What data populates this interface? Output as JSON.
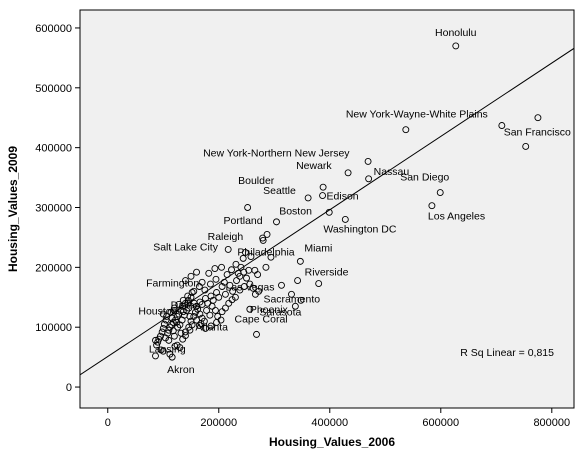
{
  "chart_data": {
    "type": "scatter",
    "xlabel": "Housing_Values_2006",
    "ylabel": "Housing_Values_2009",
    "xlim": [
      -50000,
      840000
    ],
    "ylim": [
      -35000,
      630000
    ],
    "x_ticks": [
      0,
      200000,
      400000,
      600000,
      800000
    ],
    "y_ticks": [
      0,
      100000,
      200000,
      300000,
      400000,
      500000,
      600000
    ],
    "x_tick_labels": [
      "0",
      "200000",
      "400000",
      "600000",
      "800000"
    ],
    "y_tick_labels": [
      "0",
      "100000",
      "200000",
      "300000",
      "400000",
      "500000",
      "600000"
    ],
    "grid": false,
    "background_color": "#f0f0f0",
    "marker_color": "#000000",
    "annotation": "R Sq Linear = 0,815",
    "fit_line": {
      "slope": 0.613,
      "intercept": 51000
    },
    "labeled_points": [
      {
        "label": "Honolulu",
        "x": 627000,
        "y": 570000
      },
      {
        "label": "New York-Wayne-White Plains",
        "x": 537000,
        "y": 430000
      },
      {
        "label": "San Francisco",
        "x": 753000,
        "y": 402000
      },
      {
        "label": "New York-Northern New Jersey",
        "x": 469000,
        "y": 377000
      },
      {
        "label": "Newark",
        "x": 433000,
        "y": 358000
      },
      {
        "label": "Nassau",
        "x": 470000,
        "y": 348000
      },
      {
        "label": "Boulder",
        "x": 388000,
        "y": 334000
      },
      {
        "label": "Seattle",
        "x": 361000,
        "y": 316000
      },
      {
        "label": "Edison",
        "x": 387000,
        "y": 320000
      },
      {
        "label": "San Diego",
        "x": 599000,
        "y": 325000
      },
      {
        "label": "Boston",
        "x": 399000,
        "y": 292000
      },
      {
        "label": "Los Angeles",
        "x": 584000,
        "y": 303000
      },
      {
        "label": "Portland",
        "x": 304000,
        "y": 276000
      },
      {
        "label": "Washington DC",
        "x": 428000,
        "y": 280000
      },
      {
        "label": "Raleigh",
        "x": 279000,
        "y": 249000
      },
      {
        "label": "Salt Lake City",
        "x": 217000,
        "y": 230000
      },
      {
        "label": "Philadelphia",
        "x": 248000,
        "y": 225000
      },
      {
        "label": "Miami",
        "x": 347000,
        "y": 210000
      },
      {
        "label": "Riverside",
        "x": 380000,
        "y": 173000
      },
      {
        "label": "Farmington",
        "x": 170000,
        "y": 175000
      },
      {
        "label": "Las Vegas",
        "x": 313000,
        "y": 170000
      },
      {
        "label": "Sacramento",
        "x": 331000,
        "y": 155000
      },
      {
        "label": "Sarasota",
        "x": 338000,
        "y": 135000
      },
      {
        "label": "Houston",
        "x": 120000,
        "y": 128000
      },
      {
        "label": "Dallas",
        "x": 144000,
        "y": 140000
      },
      {
        "label": "Phoenix",
        "x": 256000,
        "y": 130000
      },
      {
        "label": "Atlanta",
        "x": 165000,
        "y": 103000
      },
      {
        "label": "Cape Coral",
        "x": 268000,
        "y": 88000
      },
      {
        "label": "Lansing",
        "x": 121000,
        "y": 68000
      },
      {
        "label": "Akron",
        "x": 116000,
        "y": 50000
      }
    ],
    "points": [
      [
        775000,
        450000
      ],
      [
        710000,
        437000
      ],
      [
        252000,
        300000
      ],
      [
        342000,
        178000
      ],
      [
        348000,
        145000
      ],
      [
        266000,
        155000
      ],
      [
        287000,
        255000
      ],
      [
        280000,
        245000
      ],
      [
        294000,
        217000
      ],
      [
        258000,
        218000
      ],
      [
        244000,
        215000
      ],
      [
        231000,
        205000
      ],
      [
        240000,
        200000
      ],
      [
        223000,
        196000
      ],
      [
        205000,
        200000
      ],
      [
        193000,
        198000
      ],
      [
        182000,
        190000
      ],
      [
        160000,
        192000
      ],
      [
        150000,
        185000
      ],
      [
        140000,
        178000
      ],
      [
        165000,
        168000
      ],
      [
        155000,
        160000
      ],
      [
        175000,
        162000
      ],
      [
        185000,
        172000
      ],
      [
        195000,
        180000
      ],
      [
        210000,
        175000
      ],
      [
        220000,
        170000
      ],
      [
        232000,
        178000
      ],
      [
        250000,
        182000
      ],
      [
        270000,
        188000
      ],
      [
        285000,
        200000
      ],
      [
        265000,
        195000
      ],
      [
        245000,
        192000
      ],
      [
        235000,
        190000
      ],
      [
        215000,
        188000
      ],
      [
        225000,
        160000
      ],
      [
        212000,
        155000
      ],
      [
        200000,
        150000
      ],
      [
        190000,
        145000
      ],
      [
        180000,
        140000
      ],
      [
        170000,
        138000
      ],
      [
        160000,
        135000
      ],
      [
        150000,
        150000
      ],
      [
        145000,
        145000
      ],
      [
        140000,
        140000
      ],
      [
        135000,
        135000
      ],
      [
        132000,
        128000
      ],
      [
        128000,
        122000
      ],
      [
        125000,
        118000
      ],
      [
        122000,
        112000
      ],
      [
        118000,
        108000
      ],
      [
        115000,
        104000
      ],
      [
        112000,
        100000
      ],
      [
        110000,
        95000
      ],
      [
        108000,
        90000
      ],
      [
        105000,
        112000
      ],
      [
        102000,
        105000
      ],
      [
        100000,
        98000
      ],
      [
        98000,
        92000
      ],
      [
        95000,
        85000
      ],
      [
        92000,
        80000
      ],
      [
        90000,
        75000
      ],
      [
        88000,
        70000
      ],
      [
        86000,
        78000
      ],
      [
        104000,
        82000
      ],
      [
        96000,
        62000
      ],
      [
        86000,
        52000
      ],
      [
        100000,
        60000
      ],
      [
        112000,
        55000
      ],
      [
        125000,
        70000
      ],
      [
        130000,
        66000
      ],
      [
        135000,
        80000
      ],
      [
        140000,
        92000
      ],
      [
        146000,
        100000
      ],
      [
        150000,
        110000
      ],
      [
        155000,
        118000
      ],
      [
        158000,
        125000
      ],
      [
        162000,
        130000
      ],
      [
        166000,
        122000
      ],
      [
        170000,
        115000
      ],
      [
        174000,
        110000
      ],
      [
        178000,
        128000
      ],
      [
        184000,
        120000
      ],
      [
        188000,
        135000
      ],
      [
        194000,
        128000
      ],
      [
        198000,
        118000
      ],
      [
        206000,
        126000
      ],
      [
        212000,
        132000
      ],
      [
        218000,
        140000
      ],
      [
        224000,
        146000
      ],
      [
        230000,
        150000
      ],
      [
        238000,
        162000
      ],
      [
        246000,
        168000
      ],
      [
        256000,
        172000
      ],
      [
        262000,
        165000
      ],
      [
        272000,
        160000
      ],
      [
        204000,
        112000
      ],
      [
        196000,
        108000
      ],
      [
        186000,
        102000
      ],
      [
        176000,
        98000
      ],
      [
        138000,
        120000
      ],
      [
        142000,
        128000
      ],
      [
        134000,
        112000
      ],
      [
        126000,
        100000
      ],
      [
        118000,
        94000
      ],
      [
        114000,
        125000
      ],
      [
        120000,
        132000
      ],
      [
        128000,
        138000
      ],
      [
        136000,
        145000
      ],
      [
        144000,
        152000
      ],
      [
        152000,
        158000
      ],
      [
        116000,
        115000
      ],
      [
        124000,
        108000
      ],
      [
        130000,
        104000
      ],
      [
        106000,
        118000
      ],
      [
        100000,
        122000
      ],
      [
        148000,
        118000
      ],
      [
        152000,
        104000
      ],
      [
        160000,
        112000
      ],
      [
        168000,
        106000
      ],
      [
        132000,
        90000
      ],
      [
        140000,
        86000
      ],
      [
        148000,
        95000
      ],
      [
        120000,
        85000
      ],
      [
        110000,
        78000
      ],
      [
        254000,
        195000
      ],
      [
        238000,
        185000
      ],
      [
        206000,
        168000
      ],
      [
        196000,
        158000
      ],
      [
        186000,
        152000
      ],
      [
        176000,
        148000
      ],
      [
        166000,
        142000
      ],
      [
        156000,
        140000
      ],
      [
        146000,
        132000
      ],
      [
        136000,
        126000
      ]
    ]
  }
}
